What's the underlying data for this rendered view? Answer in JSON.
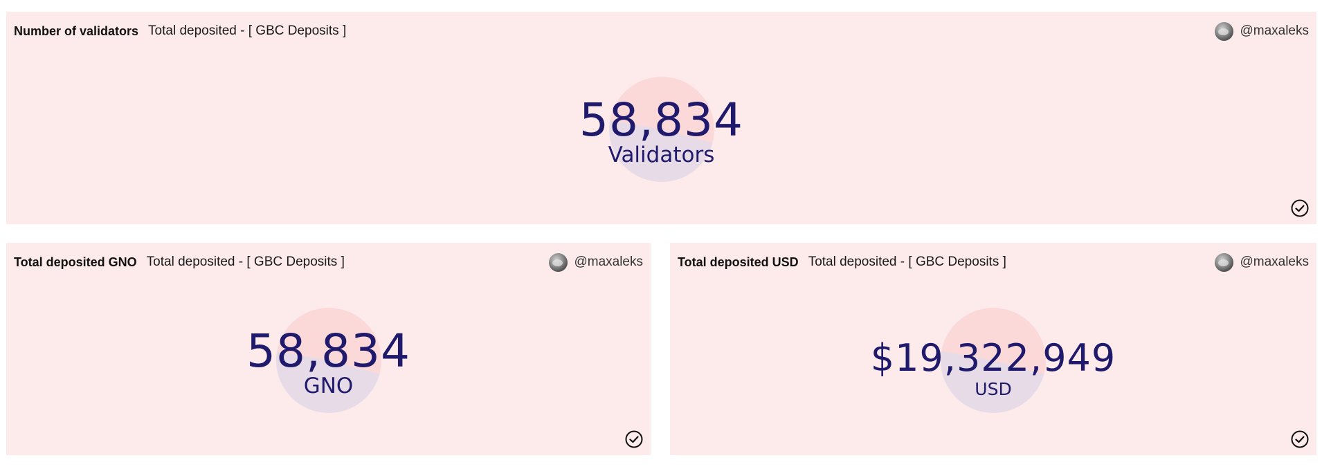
{
  "cards": [
    {
      "title": "Number of validators",
      "subtitle": "Total deposited - [ GBC Deposits ]",
      "author": "@maxaleks",
      "value": "58,834",
      "unit": "Validators"
    },
    {
      "title": "Total deposited GNO",
      "subtitle": "Total deposited - [ GBC Deposits ]",
      "author": "@maxaleks",
      "value": "58,834",
      "unit": "GNO"
    },
    {
      "title": "Total deposited USD",
      "subtitle": "Total deposited - [ GBC Deposits ]",
      "author": "@maxaleks",
      "value": "$19,322,949",
      "unit": "USD"
    }
  ],
  "icons": {
    "avatar": "avatar-image",
    "status": "check-circle-icon"
  },
  "colors": {
    "card_background": "#fdeaea",
    "value_text": "#1f1a6b",
    "circle_pink": "#fbd9d9",
    "circle_lilac": "#e6dbe6"
  }
}
